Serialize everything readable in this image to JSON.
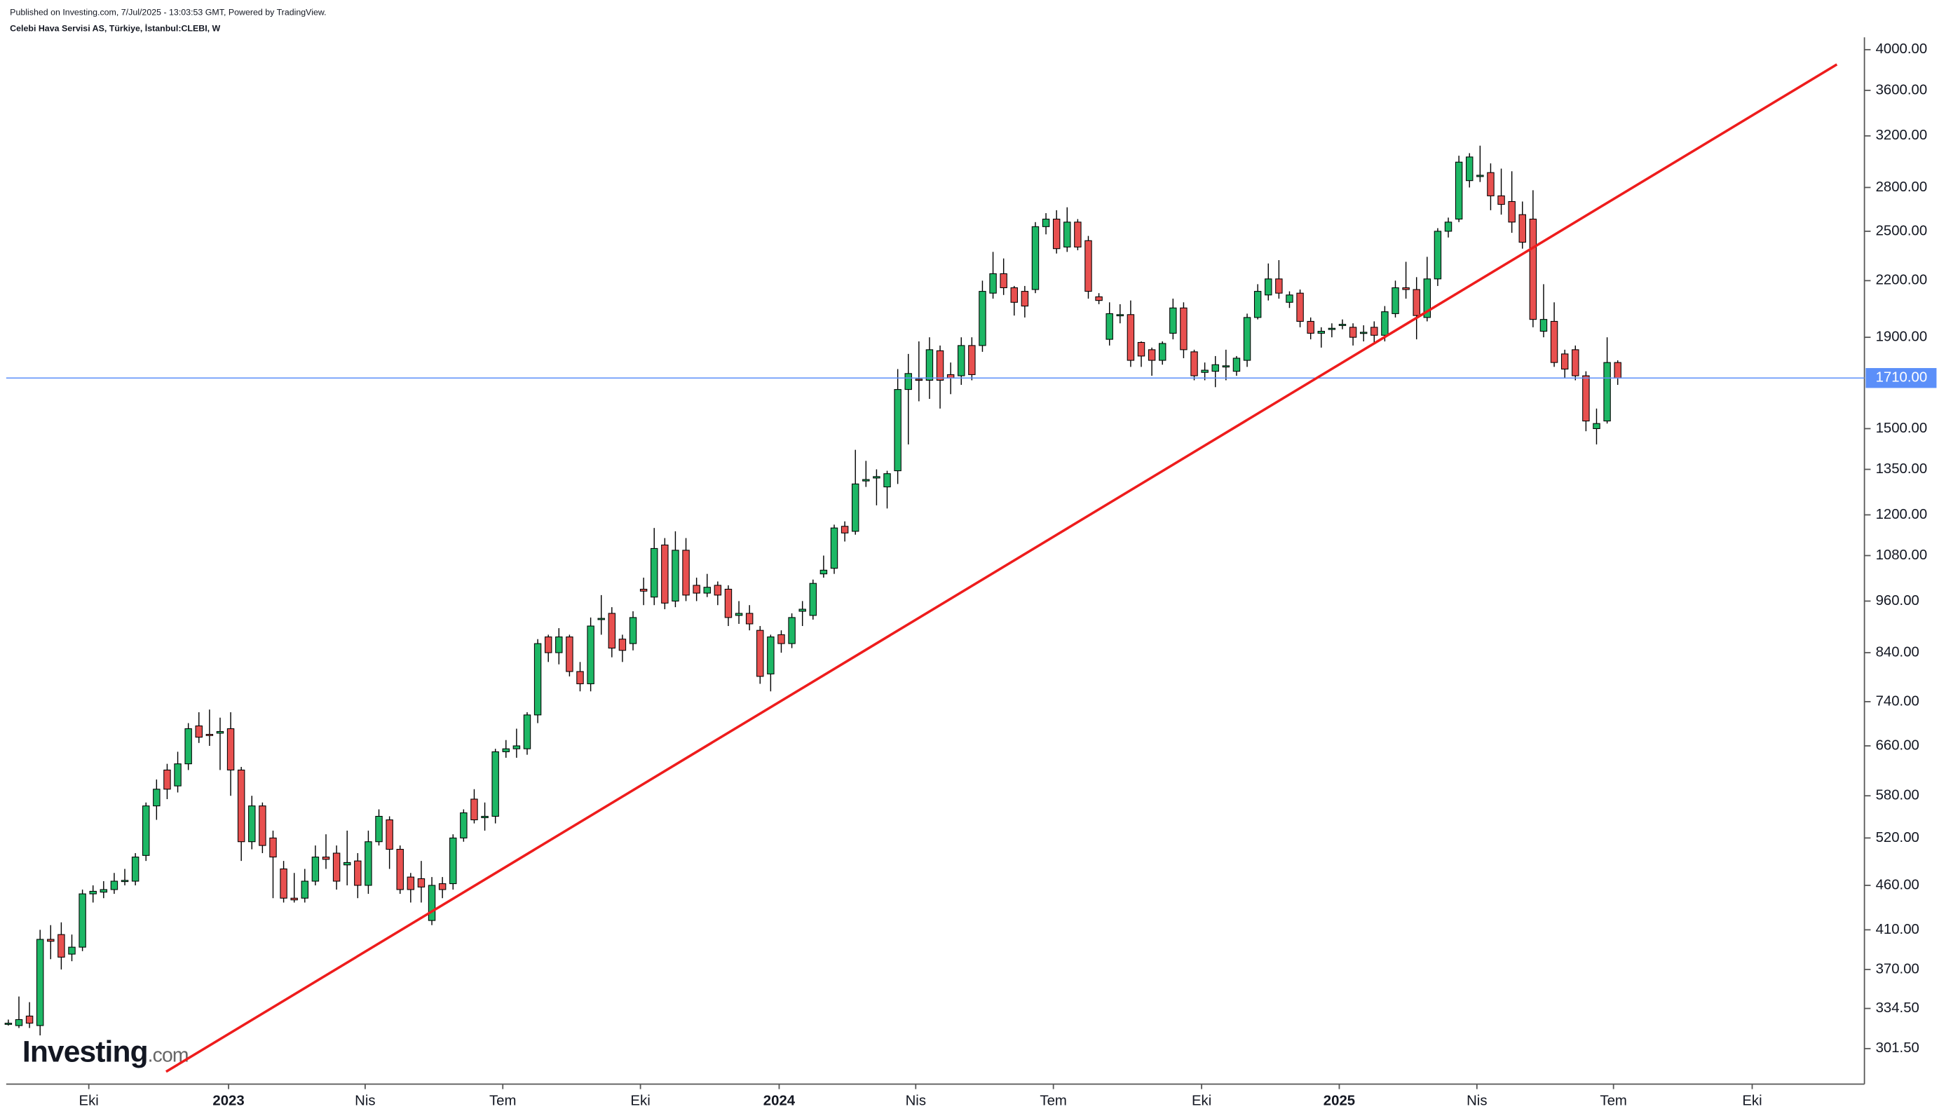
{
  "header": {
    "published": "Published on Investing.com, 7/Jul/2025 - 13:03:53 GMT, Powered by TradingView.",
    "symbol": "Celebi Hava Servisi AS, Türkiye, İstanbul:CLEBI, W"
  },
  "logo": [
    "Investing",
    ".com"
  ],
  "chart_data": {
    "type": "candlestick",
    "log_scale": true,
    "grid": false,
    "up_color": "#1db765",
    "down_color": "#e8504f",
    "x": [
      0,
      1,
      2,
      3,
      4,
      5,
      6,
      7,
      8,
      9,
      10,
      11,
      12,
      13,
      14,
      15,
      16,
      17,
      18,
      19,
      20,
      21,
      22,
      23,
      24,
      25,
      26,
      27,
      28,
      29,
      30,
      31,
      32,
      33,
      34,
      35,
      36,
      37,
      38,
      39,
      40,
      41,
      42,
      43,
      44,
      45,
      46,
      47,
      48,
      49,
      50,
      51,
      52,
      53,
      54,
      55,
      56,
      57,
      58,
      59,
      60,
      61,
      62,
      63,
      64,
      65,
      66,
      67,
      68,
      69,
      70,
      71,
      72,
      73,
      74,
      75,
      76,
      77,
      78,
      79,
      80,
      81,
      82,
      83,
      84,
      85,
      86,
      87,
      88,
      89,
      90,
      91,
      92,
      93,
      94,
      95,
      96,
      97,
      98,
      99,
      100,
      101,
      102,
      103,
      104,
      105,
      106,
      107,
      108,
      109,
      110,
      111,
      112,
      113,
      114,
      115,
      116,
      117,
      118,
      119,
      120,
      121,
      122,
      123,
      124,
      125,
      126,
      127,
      128,
      129,
      130,
      131,
      132,
      133,
      134,
      135,
      136,
      137,
      138,
      139,
      140,
      141,
      142,
      143,
      144,
      145,
      146,
      147,
      148,
      149,
      150,
      151,
      152
    ],
    "open": [
      322,
      320,
      328,
      320,
      400,
      405,
      385,
      392,
      450,
      452,
      455,
      465,
      465,
      497,
      565,
      620,
      595,
      630,
      695,
      680,
      682,
      690,
      620,
      515,
      565,
      520,
      480,
      445,
      445,
      465,
      495,
      500,
      485,
      490,
      460,
      515,
      545,
      505,
      470,
      468,
      420,
      462,
      462,
      520,
      575,
      548,
      550,
      650,
      655,
      655,
      715,
      875,
      840,
      875,
      800,
      775,
      915,
      930,
      870,
      860,
      990,
      970,
      1110,
      960,
      1095,
      1000,
      980,
      1000,
      990,
      925,
      930,
      890,
      795,
      880,
      860,
      935,
      925,
      1030,
      1045,
      1165,
      1150,
      1310,
      1320,
      1290,
      1345,
      1660,
      1705,
      1700,
      1835,
      1725,
      1720,
      1860,
      1860,
      2130,
      2240,
      2160,
      2140,
      2150,
      2530,
      2580,
      2400,
      2560,
      2440,
      2110,
      1890,
      2010,
      2015,
      1875,
      1840,
      1790,
      1920,
      2050,
      1830,
      1735,
      1740,
      1760,
      1740,
      1790,
      2000,
      2120,
      2210,
      2080,
      2130,
      1980,
      1920,
      1940,
      1960,
      1950,
      1920,
      1950,
      1910,
      2020,
      2160,
      2150,
      2000,
      2210,
      2500,
      2580,
      2850,
      2880,
      2910,
      2740,
      2700,
      2610,
      2580,
      1930,
      1980,
      1820,
      1840,
      1720,
      1500,
      1530,
      1780
    ],
    "high": [
      325,
      345,
      340,
      410,
      415,
      418,
      405,
      455,
      460,
      465,
      475,
      480,
      500,
      570,
      605,
      630,
      650,
      700,
      720,
      725,
      710,
      720,
      625,
      580,
      570,
      530,
      490,
      475,
      480,
      510,
      525,
      510,
      530,
      500,
      530,
      560,
      550,
      510,
      475,
      490,
      470,
      470,
      525,
      560,
      590,
      570,
      655,
      670,
      690,
      720,
      870,
      880,
      895,
      880,
      820,
      920,
      975,
      945,
      880,
      935,
      1020,
      1160,
      1130,
      1150,
      1130,
      1020,
      1030,
      1010,
      1000,
      960,
      950,
      900,
      880,
      890,
      930,
      960,
      1015,
      1080,
      1170,
      1180,
      1420,
      1380,
      1350,
      1345,
      1750,
      1820,
      1880,
      1900,
      1860,
      1780,
      1900,
      1900,
      2200,
      2370,
      2330,
      2170,
      2170,
      2560,
      2620,
      2640,
      2660,
      2580,
      2470,
      2130,
      2080,
      2070,
      2090,
      1880,
      1850,
      1880,
      2100,
      2080,
      1840,
      1780,
      1810,
      1840,
      1810,
      2020,
      2180,
      2300,
      2320,
      2140,
      2150,
      2000,
      1950,
      1970,
      1990,
      1970,
      1960,
      1980,
      2060,
      2200,
      2310,
      2220,
      2340,
      2520,
      2590,
      3040,
      3060,
      3120,
      2980,
      2940,
      2920,
      2700,
      2780,
      2180,
      2080,
      1840,
      1860,
      1740,
      1580,
      1900,
      1790
    ],
    "low": [
      320,
      318,
      318,
      312,
      380,
      370,
      378,
      388,
      440,
      445,
      450,
      460,
      460,
      490,
      545,
      575,
      585,
      620,
      665,
      660,
      620,
      580,
      490,
      505,
      500,
      445,
      440,
      440,
      440,
      460,
      480,
      455,
      460,
      445,
      450,
      510,
      480,
      450,
      440,
      440,
      415,
      445,
      455,
      515,
      540,
      530,
      540,
      640,
      640,
      645,
      700,
      820,
      815,
      790,
      760,
      760,
      880,
      830,
      820,
      845,
      950,
      950,
      940,
      945,
      960,
      960,
      970,
      950,
      900,
      905,
      890,
      775,
      760,
      840,
      850,
      900,
      915,
      1020,
      1030,
      1120,
      1140,
      1290,
      1230,
      1220,
      1300,
      1440,
      1610,
      1620,
      1580,
      1640,
      1680,
      1700,
      1830,
      2100,
      2120,
      2010,
      2000,
      2130,
      2480,
      2360,
      2370,
      2380,
      2100,
      2070,
      1860,
      1970,
      1760,
      1760,
      1720,
      1770,
      1890,
      1800,
      1700,
      1700,
      1670,
      1700,
      1720,
      1760,
      1990,
      2090,
      2100,
      2050,
      1950,
      1890,
      1850,
      1900,
      1940,
      1860,
      1880,
      1870,
      1880,
      2000,
      2100,
      1890,
      1980,
      2170,
      2460,
      2560,
      2800,
      2840,
      2640,
      2610,
      2490,
      2390,
      1950,
      1900,
      1760,
      1710,
      1700,
      1490,
      1440,
      1520,
      1680
    ],
    "close": [
      322,
      325,
      322,
      400,
      398,
      382,
      392,
      450,
      453,
      455,
      465,
      466,
      495,
      565,
      590,
      590,
      630,
      690,
      675,
      678,
      685,
      620,
      515,
      565,
      510,
      495,
      445,
      443,
      465,
      495,
      492,
      465,
      488,
      460,
      515,
      550,
      505,
      455,
      455,
      458,
      460,
      455,
      520,
      555,
      545,
      550,
      650,
      655,
      660,
      715,
      860,
      840,
      875,
      800,
      775,
      900,
      918,
      850,
      845,
      920,
      985,
      1100,
      955,
      1095,
      975,
      980,
      995,
      975,
      920,
      930,
      905,
      790,
      875,
      860,
      920,
      940,
      1005,
      1040,
      1160,
      1145,
      1300,
      1315,
      1325,
      1335,
      1660,
      1730,
      1700,
      1840,
      1700,
      1710,
      1860,
      1725,
      2140,
      2240,
      2160,
      2080,
      2060,
      2530,
      2580,
      2390,
      2560,
      2400,
      2140,
      2090,
      2020,
      2015,
      1790,
      1810,
      1790,
      1870,
      2050,
      1840,
      1720,
      1745,
      1770,
      1765,
      1800,
      2000,
      2140,
      2210,
      2130,
      2120,
      1980,
      1920,
      1930,
      1945,
      1965,
      1900,
      1925,
      1910,
      2030,
      2160,
      2150,
      2010,
      2210,
      2500,
      2560,
      2990,
      3030,
      2890,
      2740,
      2680,
      2560,
      2430,
      1990,
      1990,
      1780,
      1750,
      1720,
      1530,
      1520,
      1780,
      1710
    ],
    "xlim": [
      -0.2,
      175.3
    ],
    "xticks": [
      {
        "value": 7.6,
        "label": "Eki"
      },
      {
        "value": 20.8,
        "label": "2023"
      },
      {
        "value": 33.7,
        "label": "Nis"
      },
      {
        "value": 46.7,
        "label": "Tem"
      },
      {
        "value": 59.7,
        "label": "Eki"
      },
      {
        "value": 72.8,
        "label": "2024"
      },
      {
        "value": 85.7,
        "label": "Nis"
      },
      {
        "value": 98.7,
        "label": "Tem"
      },
      {
        "value": 112.7,
        "label": "Eki"
      },
      {
        "value": 125.7,
        "label": "2025"
      },
      {
        "value": 138.7,
        "label": "Nis"
      },
      {
        "value": 151.6,
        "label": "Tem"
      },
      {
        "value": 164.7,
        "label": "Eki"
      }
    ],
    "ylim": [
      275,
      4130
    ],
    "yticks": [
      {
        "value": 4000,
        "label": "4000.00"
      },
      {
        "value": 3600,
        "label": "3600.00"
      },
      {
        "value": 3200,
        "label": "3200.00"
      },
      {
        "value": 2800,
        "label": "2800.00"
      },
      {
        "value": 2500,
        "label": "2500.00"
      },
      {
        "value": 2200,
        "label": "2200.00"
      },
      {
        "value": 1900,
        "label": "1900.00"
      },
      {
        "value": 1500,
        "label": "1500.00"
      },
      {
        "value": 1350,
        "label": "1350.00"
      },
      {
        "value": 1200,
        "label": "1200.00"
      },
      {
        "value": 1080,
        "label": "1080.00"
      },
      {
        "value": 960,
        "label": "960.00"
      },
      {
        "value": 840,
        "label": "840.00"
      },
      {
        "value": 740,
        "label": "740.00"
      },
      {
        "value": 660,
        "label": "660.00"
      },
      {
        "value": 580,
        "label": "580.00"
      },
      {
        "value": 520,
        "label": "520.00"
      },
      {
        "value": 460,
        "label": "460.00"
      },
      {
        "value": 410,
        "label": "410.00"
      },
      {
        "value": 370,
        "label": "370.00"
      },
      {
        "value": {
          "value": 334.5,
          "label": "334.50"
        },
        "label": "334.50"
      },
      {
        "value": 301.5,
        "label": "301.50"
      }
    ],
    "price_line": {
      "value": 1710,
      "label": "1710.00",
      "color": "#5b8ff9"
    },
    "trendline": {
      "x": [
        14.9,
        172.7
      ],
      "y": [
        284,
        3850
      ],
      "color": "#ee1c1c"
    }
  }
}
